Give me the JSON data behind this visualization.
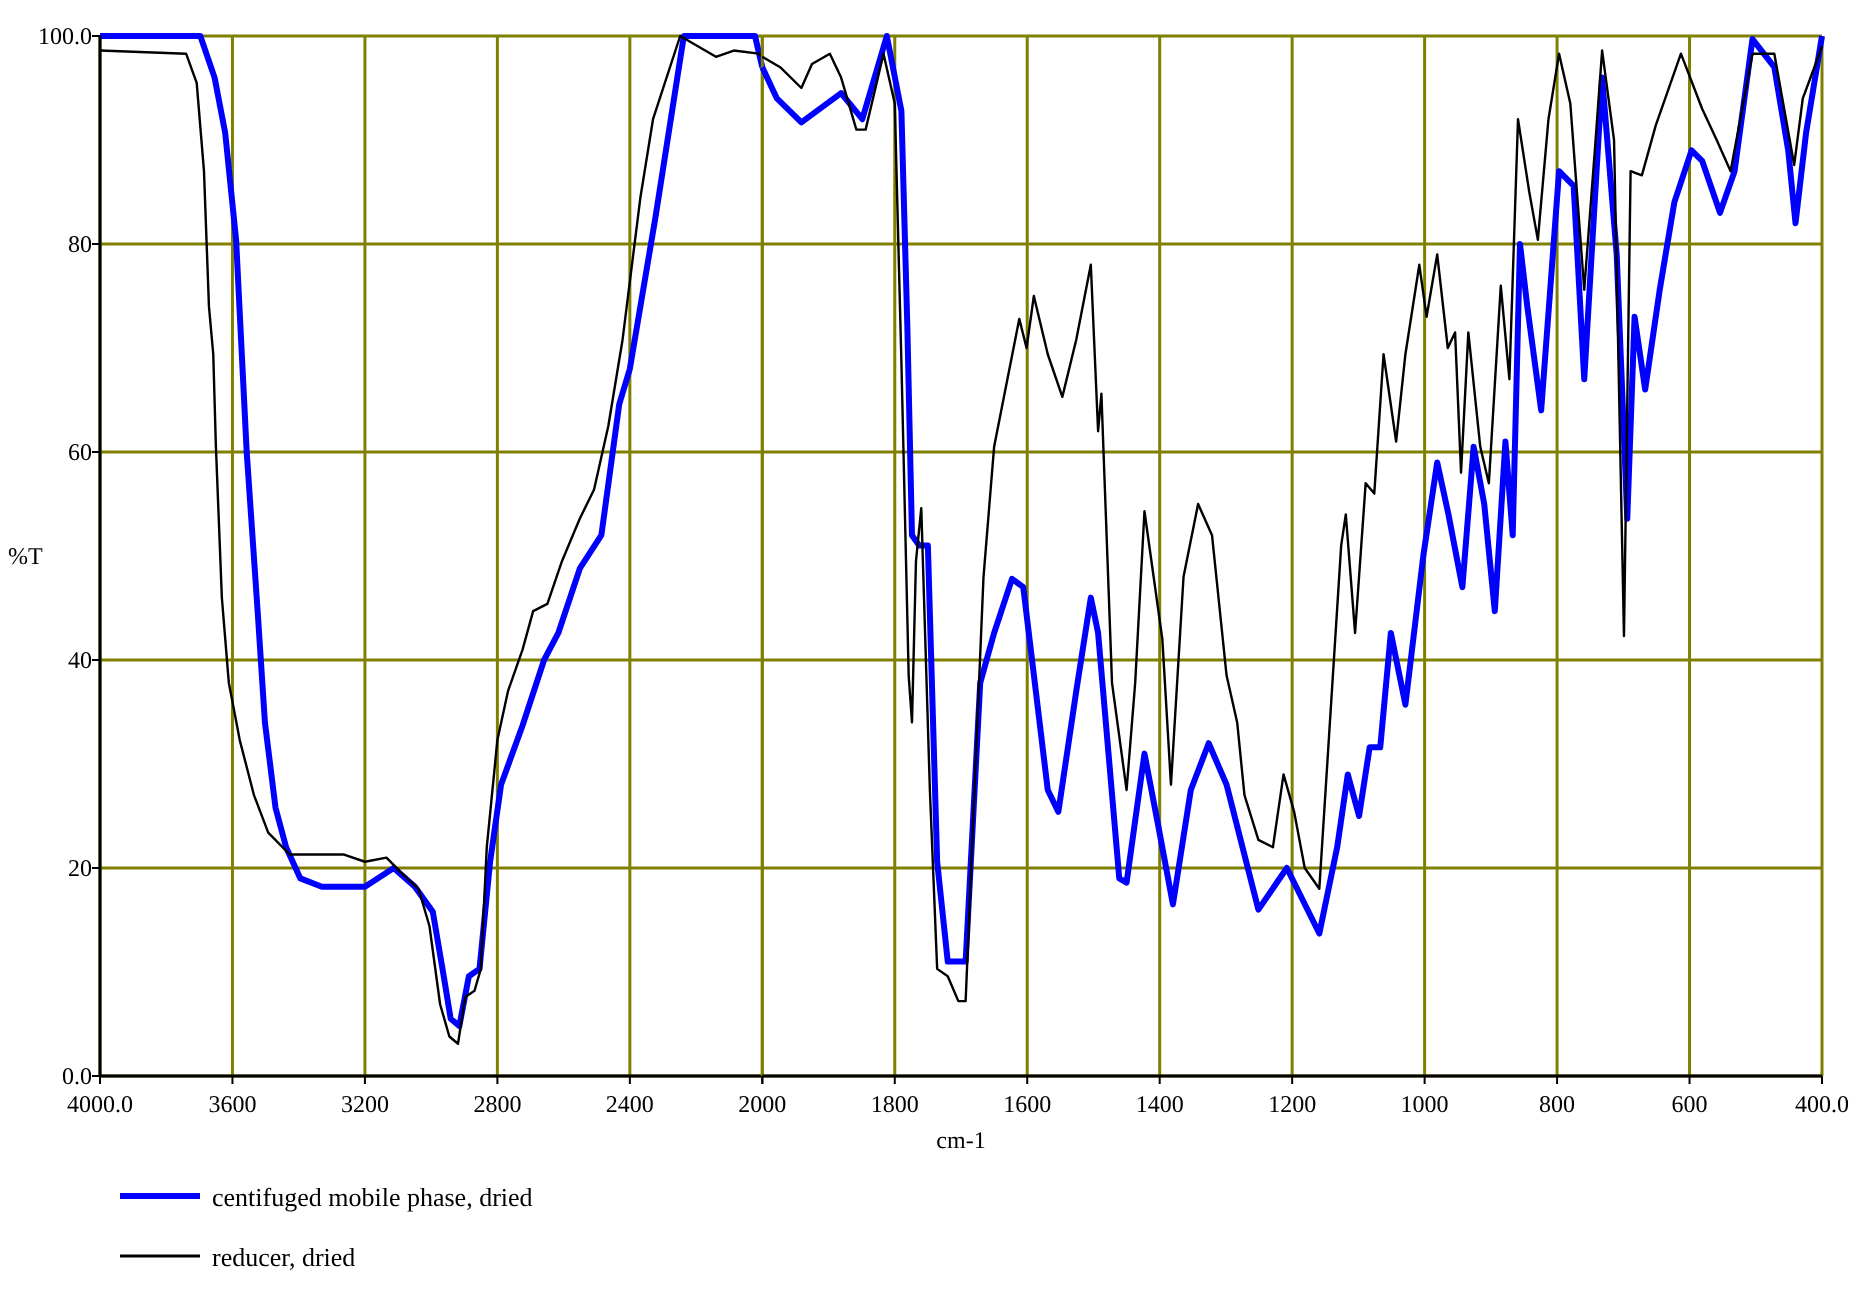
{
  "chart_data": [
    {
      "type": "line",
      "ylabel": "%T",
      "xlim": [
        4000,
        2000
      ],
      "ylim": [
        0,
        100
      ],
      "xticks": [
        {
          "value": 4000,
          "label": "4000.0"
        },
        3600,
        3200,
        2800,
        2400,
        2000
      ],
      "yticks": [
        {
          "value": 0,
          "label": "0.0"
        },
        20,
        40,
        60,
        80,
        {
          "value": 100,
          "label": "100.0"
        }
      ],
      "grid": true,
      "legend": "bottom left",
      "series": [
        {
          "name": "centifuged mobile phase, dried",
          "color": "#0000ff",
          "x": [
            4000,
            3697,
            3654,
            3622,
            3589,
            3557,
            3524,
            3502,
            3470,
            3438,
            3395,
            3330,
            3200,
            3113,
            3049,
            2995,
            2962,
            2941,
            2915,
            2886,
            2854,
            2822,
            2789,
            2724,
            2659,
            2616,
            2551,
            2486,
            2432,
            2400,
            2323,
            2237,
            2129,
            2022,
            2000
          ],
          "values": [
            100,
            100,
            96,
            90.7,
            80.4,
            60,
            44.7,
            34,
            25.8,
            22,
            19,
            18.2,
            18.2,
            20,
            18.2,
            15.8,
            9.6,
            5.5,
            4.8,
            9.6,
            10.3,
            20.6,
            28,
            33.7,
            40,
            42.6,
            48.8,
            52,
            64.6,
            68,
            82.5,
            100,
            100,
            100,
            97
          ]
        },
        {
          "name": "reducer, dried",
          "color": "#000000",
          "x": [
            4000,
            3740,
            3708,
            3686,
            3671,
            3658,
            3650,
            3632,
            3611,
            3578,
            3535,
            3492,
            3427,
            3265,
            3200,
            3135,
            3092,
            3038,
            3005,
            2973,
            2945,
            2919,
            2897,
            2869,
            2850,
            2832,
            2800,
            2768,
            2724,
            2692,
            2649,
            2605,
            2551,
            2508,
            2465,
            2422,
            2368,
            2330,
            2248,
            2140,
            2086,
            2011,
            2000
          ],
          "values": [
            98.6,
            98.3,
            95.5,
            87,
            74,
            69.4,
            60.5,
            46,
            37.8,
            32.3,
            27,
            23.4,
            21.3,
            21.3,
            20.6,
            21,
            19.6,
            18,
            14.4,
            6.9,
            3.8,
            3.1,
            7.6,
            8.2,
            10.3,
            22,
            32.3,
            37,
            41,
            44.7,
            45.4,
            49.5,
            53.6,
            56.4,
            62.5,
            70.8,
            84.5,
            92,
            100,
            98,
            98.6,
            98.3,
            98
          ]
        }
      ]
    },
    {
      "type": "line",
      "xlabel": "cm-1",
      "xlim": [
        2000,
        400
      ],
      "ylim": [
        0,
        100
      ],
      "xticks": [
        {
          "value": 2000,
          "label": null
        },
        1800,
        1600,
        1400,
        1200,
        1000,
        800,
        600,
        {
          "value": 400,
          "label": "400.0"
        }
      ],
      "yticks": [
        0,
        20,
        40,
        60,
        80,
        100
      ],
      "tick_labels": "x",
      "grid": true,
      "series": [
        {
          "color": "#0000ff",
          "x": [
            2000,
            1978,
            1941,
            1881,
            1849,
            1812,
            1790,
            1781,
            1774,
            1763,
            1750,
            1736,
            1720,
            1693,
            1671,
            1650,
            1623,
            1606,
            1569,
            1553,
            1526,
            1504,
            1493,
            1461,
            1450,
            1423,
            1402,
            1380,
            1353,
            1326,
            1299,
            1251,
            1208,
            1159,
            1132,
            1116,
            1099,
            1083,
            1067,
            1051,
            1029,
            1002,
            981,
            964,
            943,
            926,
            910,
            894,
            878,
            867,
            856,
            845,
            824,
            797,
            775,
            759,
            732,
            710,
            694,
            683,
            667,
            645,
            623,
            597,
            581,
            554,
            532,
            505,
            472,
            451,
            440,
            424,
            400
          ],
          "values": [
            97,
            94,
            91.7,
            94.5,
            92,
            100,
            92.8,
            72,
            52,
            51,
            51,
            20.6,
            11,
            11,
            37.8,
            42.6,
            47.8,
            47,
            27.5,
            25.4,
            37,
            46,
            42.6,
            19,
            18.6,
            31,
            24,
            16.5,
            27.5,
            32,
            28,
            16,
            20,
            13.7,
            22,
            29,
            25,
            31.6,
            31.6,
            42.6,
            35.7,
            50,
            59,
            54,
            47,
            60.5,
            55,
            44.7,
            61,
            52,
            80,
            74,
            64,
            87,
            85.6,
            67,
            96,
            79,
            53.6,
            73,
            66,
            75.6,
            84,
            89,
            88,
            83,
            87,
            99.7,
            97,
            89,
            82,
            90.7,
            100
          ]
        },
        {
          "color": "#000000",
          "x": [
            2000,
            1973,
            1941,
            1925,
            1898,
            1881,
            1858,
            1844,
            1817,
            1800,
            1790,
            1779,
            1774,
            1768,
            1760,
            1747,
            1736,
            1720,
            1704,
            1693,
            1682,
            1666,
            1650,
            1633,
            1612,
            1601,
            1590,
            1569,
            1547,
            1526,
            1504,
            1493,
            1488,
            1472,
            1450,
            1437,
            1423,
            1396,
            1383,
            1364,
            1342,
            1321,
            1299,
            1283,
            1272,
            1251,
            1229,
            1213,
            1197,
            1181,
            1159,
            1143,
            1126,
            1119,
            1105,
            1089,
            1076,
            1062,
            1043,
            1029,
            1008,
            997,
            981,
            965,
            954,
            945,
            934,
            916,
            903,
            885,
            872,
            859,
            842,
            829,
            813,
            797,
            780,
            759,
            743,
            732,
            714,
            699,
            689,
            672,
            651,
            613,
            581,
            559,
            538,
            505,
            472,
            442,
            429,
            408,
            400
          ],
          "values": [
            98,
            97,
            95,
            97.3,
            98.3,
            96,
            91,
            91,
            98.3,
            93.5,
            68.7,
            38.5,
            34,
            49.5,
            54.6,
            27.5,
            10.3,
            9.6,
            7.2,
            7.2,
            24,
            48,
            60.5,
            66,
            72.8,
            70,
            75,
            69.4,
            65.3,
            70.8,
            78,
            62,
            65.6,
            37.8,
            27.5,
            37.8,
            54.3,
            42,
            28,
            48,
            55,
            52,
            38.5,
            34,
            27,
            22.7,
            22,
            29,
            25.4,
            20,
            18,
            34,
            51,
            54,
            42.6,
            57,
            56,
            69.4,
            61,
            69.4,
            78,
            73,
            79,
            70,
            71.5,
            58,
            71.5,
            60.5,
            57,
            76,
            67,
            92,
            85,
            80.4,
            92,
            98.3,
            93.5,
            75.6,
            89,
            98.6,
            90,
            42.3,
            87,
            86.6,
            91.4,
            98.3,
            93,
            90,
            87,
            98.3,
            98.3,
            87.6,
            94,
            97.6,
            99
          ]
        }
      ]
    }
  ]
}
